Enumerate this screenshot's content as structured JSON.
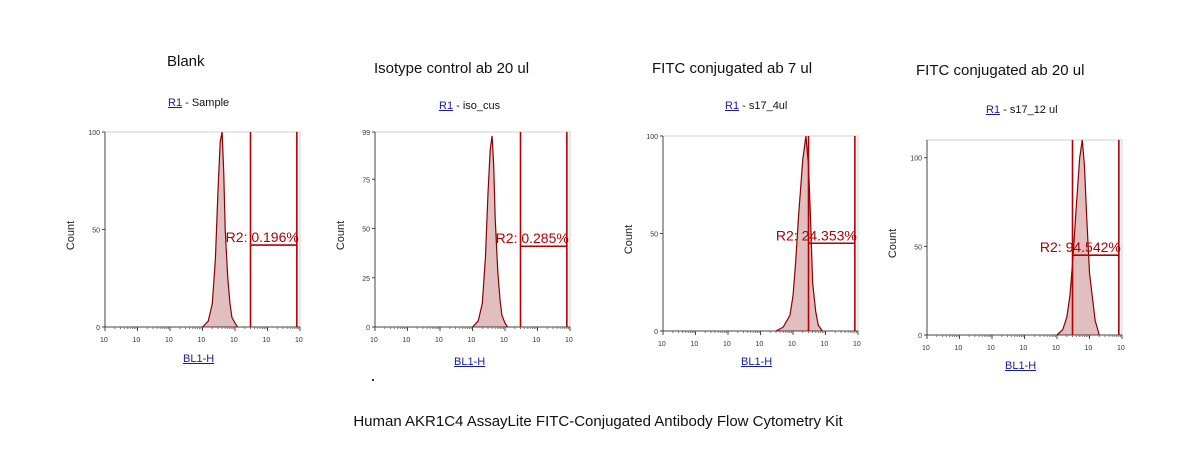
{
  "caption": "Human AKR1C4 AssayLite FITC-Conjugated Antibody Flow Cytometry Kit",
  "colors": {
    "histogram": "#8b0000",
    "gate": "#b00000",
    "gate_label": "#b00000",
    "axis": "#444444",
    "link": "#1a1aa0"
  },
  "panels": [
    {
      "title": "Blank",
      "region_link": "R1",
      "region_rest": " - Sample",
      "xlabel": "BL1-H",
      "ylabel": "Count",
      "gate_text": "R2: 0.196%"
    },
    {
      "title": "Isotype control ab 20 ul",
      "region_link": "R1",
      "region_rest": " - iso_cus",
      "xlabel": "BL1-H",
      "ylabel": "Count",
      "gate_text": "R2: 0.285%"
    },
    {
      "title": "FITC conjugated ab 7 ul",
      "region_link": "R1",
      "region_rest": " - s17_4ul",
      "xlabel": "BL1-H",
      "ylabel": "Count",
      "gate_text": "R2: 24.353%"
    },
    {
      "title": "FITC conjugated ab 20 ul",
      "region_link": "R1",
      "region_rest": " - s17_12 ul",
      "xlabel": "BL1-H",
      "ylabel": "Count",
      "gate_text": "R2: 94.542%"
    }
  ],
  "chart_data": [
    {
      "type": "area",
      "title": "Blank",
      "xlabel": "BL1-H",
      "ylabel": "Count",
      "xscale": "log",
      "xlim": [
        1,
        1000000
      ],
      "xticks": [
        "10",
        "10",
        "10",
        "10",
        "10",
        "10",
        "10"
      ],
      "ylim": [
        0,
        100
      ],
      "yticks": [
        0,
        50,
        100
      ],
      "x": [
        1000,
        1500,
        2000,
        2500,
        3000,
        3500,
        4000,
        4500,
        5000,
        6000,
        7000,
        8000,
        10000,
        12000
      ],
      "y": [
        0,
        3,
        12,
        35,
        70,
        95,
        100,
        80,
        50,
        25,
        12,
        5,
        2,
        0
      ],
      "gate": {
        "name": "R2",
        "percent": 0.196,
        "start": 30000,
        "end": 800000,
        "level": 42
      }
    },
    {
      "type": "area",
      "title": "Isotype control ab 20 ul",
      "xlabel": "BL1-H",
      "ylabel": "Count",
      "xscale": "log",
      "xlim": [
        1,
        1000000
      ],
      "xticks": [
        "10",
        "10",
        "10",
        "10",
        "10",
        "10",
        "10"
      ],
      "ylim": [
        0,
        99
      ],
      "yticks": [
        0,
        25,
        50,
        75,
        99
      ],
      "x": [
        1000,
        1500,
        2000,
        2500,
        3000,
        3500,
        4000,
        4500,
        5000,
        6000,
        7000,
        8000,
        10000,
        12000
      ],
      "y": [
        0,
        3,
        12,
        35,
        68,
        90,
        97,
        82,
        55,
        28,
        14,
        6,
        2,
        0
      ],
      "gate": {
        "name": "R2",
        "percent": 0.285,
        "start": 30000,
        "end": 800000,
        "level": 41
      }
    },
    {
      "type": "area",
      "title": "FITC conjugated ab 7 ul",
      "xlabel": "BL1-H",
      "ylabel": "Count",
      "xscale": "log",
      "xlim": [
        1,
        1000000
      ],
      "xticks": [
        "10",
        "10",
        "10",
        "10",
        "10",
        "10",
        "10"
      ],
      "ylim": [
        0,
        100
      ],
      "yticks": [
        0,
        50,
        100
      ],
      "x": [
        3000,
        5000,
        8000,
        10000,
        12000,
        15000,
        20000,
        25000,
        30000,
        35000,
        40000,
        50000,
        60000,
        80000
      ],
      "y": [
        0,
        2,
        8,
        18,
        35,
        60,
        88,
        100,
        85,
        55,
        25,
        10,
        3,
        0
      ],
      "gate": {
        "name": "R2",
        "percent": 24.353,
        "start": 30000,
        "end": 800000,
        "level": 45
      }
    },
    {
      "type": "area",
      "title": "FITC conjugated ab 20 ul",
      "xlabel": "BL1-H",
      "ylabel": "Count",
      "xscale": "log",
      "xlim": [
        1,
        1000000
      ],
      "xticks": [
        "10",
        "10",
        "10",
        "10",
        "10",
        "10",
        "10"
      ],
      "ylim": [
        0,
        110
      ],
      "yticks": [
        0,
        50,
        100
      ],
      "x": [
        10000,
        15000,
        20000,
        25000,
        30000,
        40000,
        50000,
        60000,
        70000,
        80000,
        100000,
        150000,
        200000
      ],
      "y": [
        0,
        3,
        10,
        22,
        40,
        75,
        100,
        110,
        95,
        70,
        35,
        8,
        0
      ],
      "gate": {
        "name": "R2",
        "percent": 94.542,
        "start": 30000,
        "end": 800000,
        "level": 45
      }
    }
  ]
}
